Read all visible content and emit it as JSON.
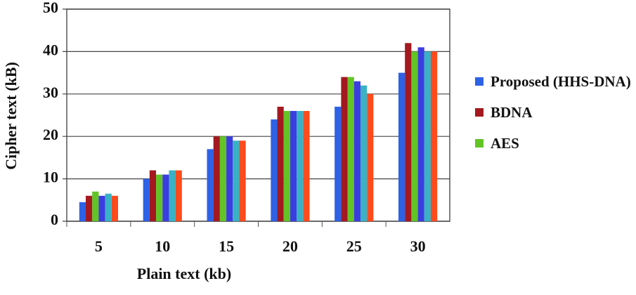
{
  "chart_data": {
    "type": "bar",
    "x_label": "Plain text (kb)",
    "y_label": "Cipher text (kB)",
    "categories": [
      "5",
      "10",
      "15",
      "20",
      "25",
      "30"
    ],
    "series": [
      {
        "name": "Proposed (HHS-DNA)",
        "color": "#2d62e6",
        "values": [
          4.5,
          10,
          17,
          24,
          27,
          35
        ]
      },
      {
        "name": "BDNA",
        "color": "#a3191f",
        "values": [
          6,
          12,
          20,
          27,
          34,
          42
        ]
      },
      {
        "name": "AES",
        "color": "#62c425",
        "values": [
          7,
          11,
          20,
          26,
          34,
          40
        ]
      },
      {
        "color": "#3b3de0",
        "values": [
          6,
          11,
          20,
          26,
          33,
          41
        ]
      },
      {
        "color": "#38b2c4",
        "values": [
          6.5,
          12,
          19,
          26,
          32,
          40
        ]
      },
      {
        "color": "#ff4b1c",
        "values": [
          6,
          12,
          19,
          26,
          30,
          40
        ]
      }
    ],
    "ylim": [
      0,
      50
    ],
    "yticks": [
      0,
      10,
      20,
      30,
      40,
      50
    ],
    "grid": true
  }
}
